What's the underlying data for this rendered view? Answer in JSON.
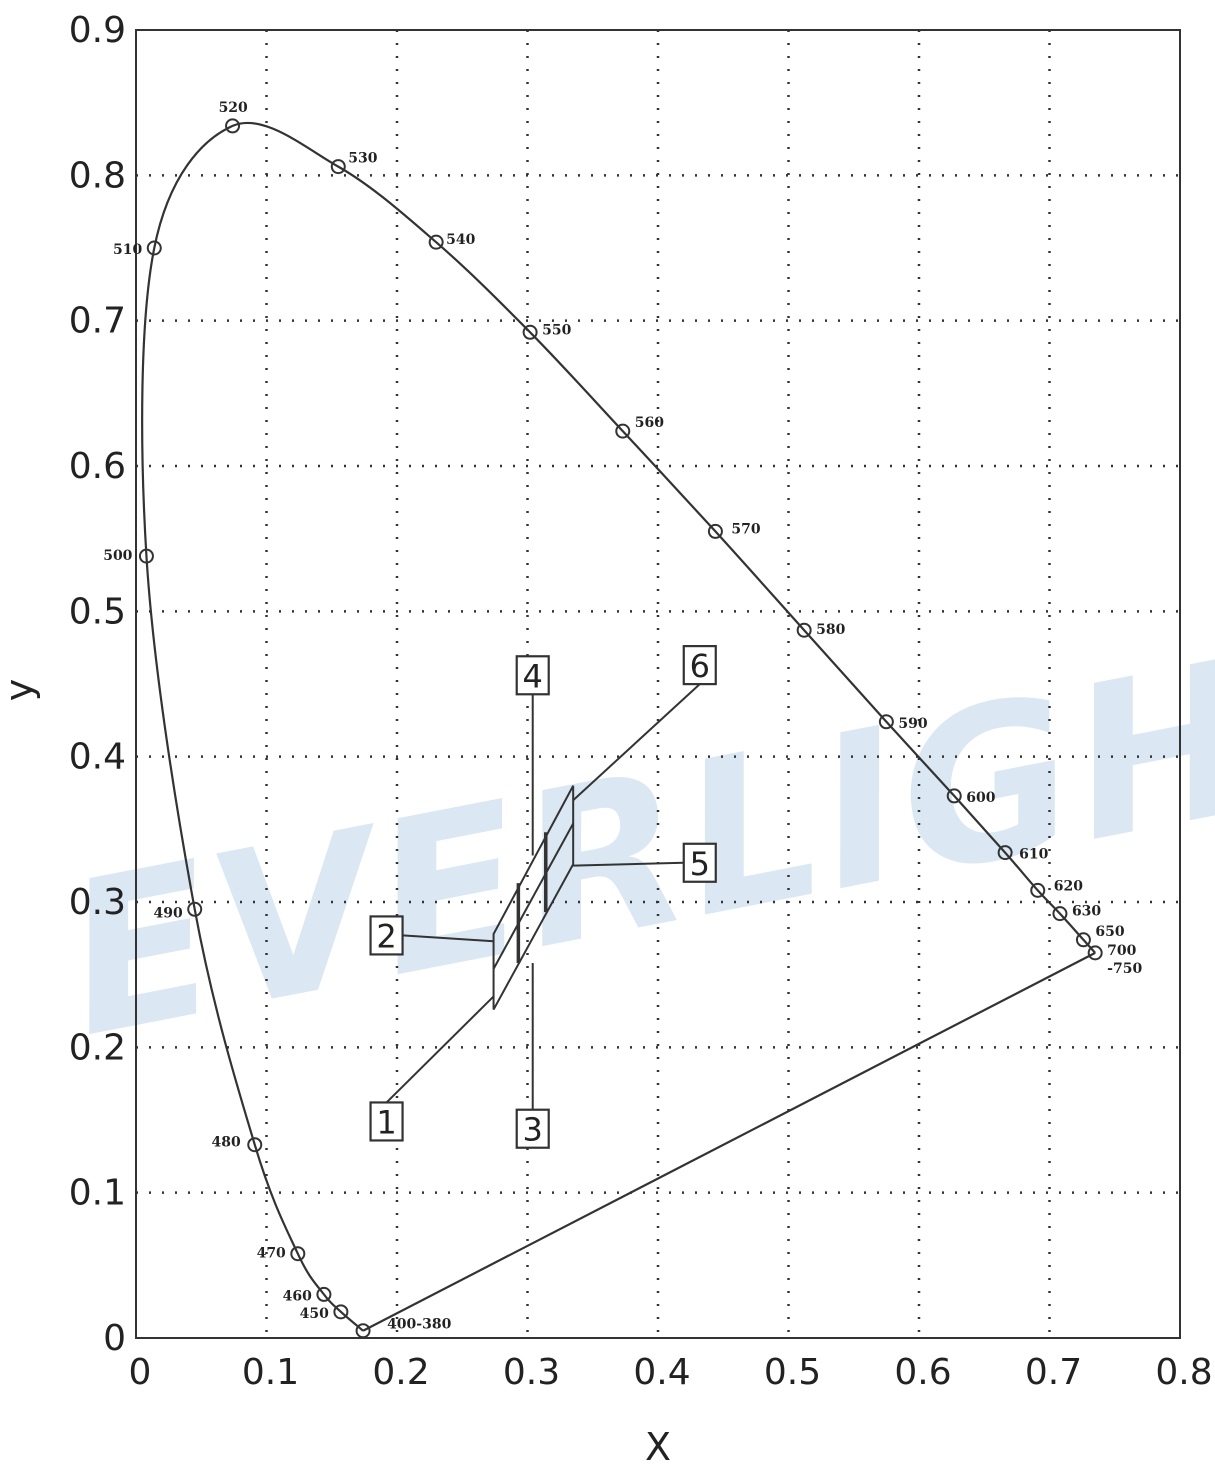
{
  "chart_data": {
    "type": "scatter",
    "title": "",
    "xlabel": "X",
    "ylabel": "y",
    "xlim": [
      0,
      0.8
    ],
    "ylim": [
      0,
      0.9
    ],
    "grid": true,
    "watermark": "EVERLIGHT",
    "x_ticks": [
      "0",
      "0.1",
      "0.2",
      "0.3",
      "0.4",
      "0.5",
      "0.6",
      "0.7",
      "0.8"
    ],
    "y_ticks": [
      "0",
      "0.1",
      "0.2",
      "0.3",
      "0.4",
      "0.5",
      "0.6",
      "0.7",
      "0.8",
      "0.9"
    ],
    "colors": {
      "line": "#333333",
      "grid": "#333333",
      "watermark": "#dbe8f4"
    },
    "locus_points": [
      {
        "label": "400-380",
        "x": 0.174,
        "y": 0.005
      },
      {
        "label": "450",
        "x": 0.157,
        "y": 0.018
      },
      {
        "label": "460",
        "x": 0.144,
        "y": 0.03
      },
      {
        "label": "470",
        "x": 0.124,
        "y": 0.058
      },
      {
        "label": "480",
        "x": 0.091,
        "y": 0.133
      },
      {
        "label": "490",
        "x": 0.045,
        "y": 0.295
      },
      {
        "label": "500",
        "x": 0.008,
        "y": 0.538
      },
      {
        "label": "510",
        "x": 0.014,
        "y": 0.75
      },
      {
        "label": "520",
        "x": 0.074,
        "y": 0.834
      },
      {
        "label": "530",
        "x": 0.155,
        "y": 0.806
      },
      {
        "label": "540",
        "x": 0.23,
        "y": 0.754
      },
      {
        "label": "550",
        "x": 0.302,
        "y": 0.692
      },
      {
        "label": "560",
        "x": 0.373,
        "y": 0.624
      },
      {
        "label": "570",
        "x": 0.444,
        "y": 0.555
      },
      {
        "label": "580",
        "x": 0.512,
        "y": 0.487
      },
      {
        "label": "590",
        "x": 0.575,
        "y": 0.424
      },
      {
        "label": "600",
        "x": 0.627,
        "y": 0.373
      },
      {
        "label": "610",
        "x": 0.666,
        "y": 0.334
      },
      {
        "label": "620",
        "x": 0.691,
        "y": 0.308
      },
      {
        "label": "630",
        "x": 0.708,
        "y": 0.292
      },
      {
        "label": "650",
        "x": 0.726,
        "y": 0.274
      },
      {
        "label": "700",
        "label2": "-750",
        "x": 0.735,
        "y": 0.265
      }
    ],
    "bins": {
      "outline": [
        {
          "x": 0.274,
          "y": 0.226
        },
        {
          "x": 0.274,
          "y": 0.278
        },
        {
          "x": 0.335,
          "y": 0.38
        },
        {
          "x": 0.335,
          "y": 0.326
        }
      ],
      "dividers_vertical": [
        [
          {
            "x": 0.293,
            "y": 0.258
          },
          {
            "x": 0.293,
            "y": 0.313
          }
        ],
        [
          {
            "x": 0.314,
            "y": 0.293
          },
          {
            "x": 0.314,
            "y": 0.348
          }
        ]
      ],
      "divider_horizontal": [
        {
          "x": 0.274,
          "y": 0.254
        },
        {
          "x": 0.335,
          "y": 0.354
        }
      ]
    },
    "callouts": [
      {
        "label": "1",
        "box": {
          "x": 0.192,
          "y": 0.149
        },
        "target": {
          "x": 0.274,
          "y": 0.235
        }
      },
      {
        "label": "2",
        "box": {
          "x": 0.192,
          "y": 0.277
        },
        "target": {
          "x": 0.274,
          "y": 0.273
        }
      },
      {
        "label": "3",
        "box": {
          "x": 0.304,
          "y": 0.144
        },
        "target": {
          "x": 0.304,
          "y": 0.258
        }
      },
      {
        "label": "4",
        "box": {
          "x": 0.304,
          "y": 0.456
        },
        "target": {
          "x": 0.304,
          "y": 0.332
        }
      },
      {
        "label": "5",
        "box": {
          "x": 0.432,
          "y": 0.327
        },
        "target": {
          "x": 0.335,
          "y": 0.325
        }
      },
      {
        "label": "6",
        "box": {
          "x": 0.432,
          "y": 0.463
        },
        "target": {
          "x": 0.335,
          "y": 0.37
        }
      }
    ]
  }
}
